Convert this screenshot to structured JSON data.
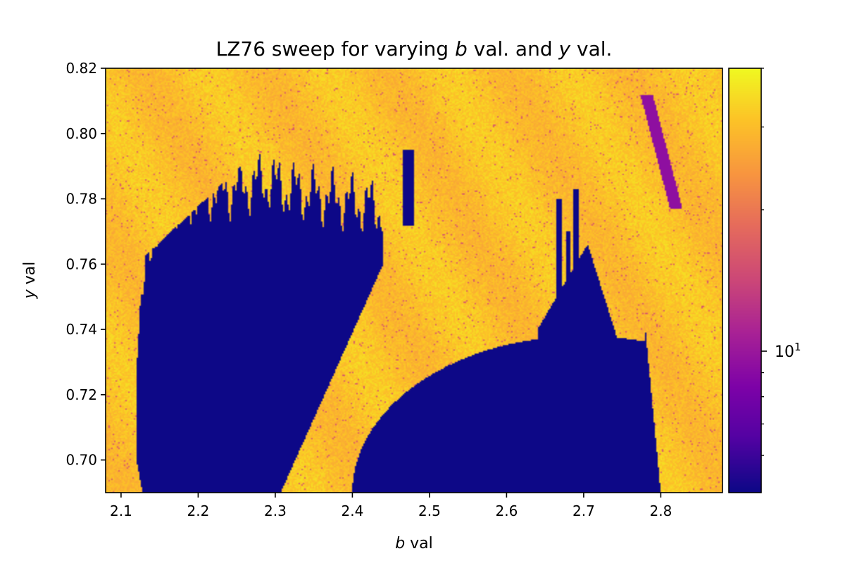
{
  "chart_data": {
    "type": "heatmap",
    "title_prefix": "LZ76 sweep for varying ",
    "title_var1": "b",
    "title_middle": " val. and ",
    "title_var2": "y",
    "title_suffix": " val.",
    "xlabel_var": "b",
    "xlabel_suffix": " val",
    "ylabel_var": "y",
    "ylabel_suffix": " val",
    "xlim": [
      2.08,
      2.88
    ],
    "ylim": [
      0.69,
      0.82
    ],
    "xticks": [
      2.1,
      2.2,
      2.3,
      2.4,
      2.5,
      2.6,
      2.7,
      2.8
    ],
    "xtick_labels": [
      "2.1",
      "2.2",
      "2.3",
      "2.4",
      "2.5",
      "2.6",
      "2.7",
      "2.8"
    ],
    "yticks": [
      0.7,
      0.72,
      0.74,
      0.76,
      0.78,
      0.8,
      0.82
    ],
    "ytick_labels": [
      "0.70",
      "0.72",
      "0.74",
      "0.76",
      "0.78",
      "0.80",
      "0.82"
    ],
    "colormap": "plasma",
    "color_scale": "log",
    "colorbar": {
      "min": 5,
      "max": 40,
      "major_tick_value": 10,
      "major_tick_label_base": "10",
      "major_tick_label_exp": "1",
      "minor_tick_values": [
        6,
        7,
        8,
        9,
        20,
        30,
        40
      ]
    },
    "low_color": "#0d0887",
    "high_color": "#fbba2f",
    "regions": {
      "low_complexity": "dark blue (value ≈ 5) — large lobe 2.12–2.48, lower dome 2.40–2.80, thin spikes near 2.66–2.70",
      "high_complexity": "orange/yellow (value ≈ 30–40) elsewhere",
      "mid_complexity_island": "purple streak near b≈2.78–2.82, y≈0.777–0.812 (value ≈ 9)"
    }
  }
}
